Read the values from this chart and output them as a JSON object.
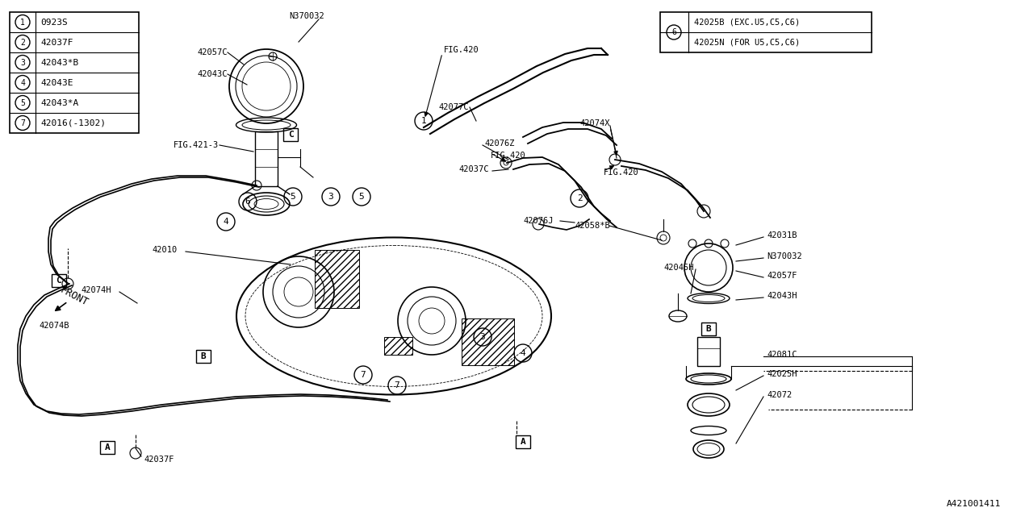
{
  "bg_color": "#ffffff",
  "line_color": "#000000",
  "figure_id": "A421001411",
  "legend_items": [
    {
      "num": "1",
      "code": "0923S"
    },
    {
      "num": "2",
      "code": "42037F"
    },
    {
      "num": "3",
      "code": "42043*B"
    },
    {
      "num": "4",
      "code": "42043E"
    },
    {
      "num": "5",
      "code": "42043*A"
    },
    {
      "num": "7",
      "code": "42016(-1302)"
    }
  ],
  "legend6_line1": "42025B (EXC.U5,C5,C6)",
  "legend6_line2": "42025N (FOR U5,C5,C6)"
}
